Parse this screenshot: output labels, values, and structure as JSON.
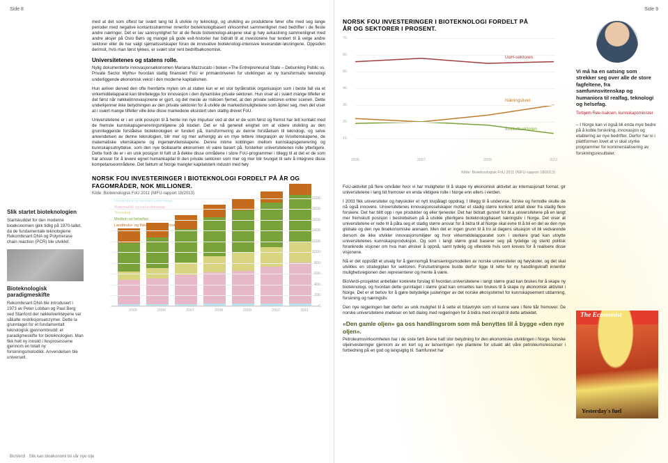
{
  "page_left_num": "Side 8",
  "page_right_num": "Side 9",
  "footer": "BioVerdi · Slik kan bioøkonomi bli vår nye olje",
  "sidebar": {
    "h1_title": "Slik startet bioteknologien",
    "h1_body": "Startskuddet for den moderne bioøkonomien gikk tidlig på 1970-tallet, da de fundamentale teknologiene Rekombinant DNA og Polymerase chain reaction (PCR) ble utviklet.",
    "h2_title": "Bioteknologisk paradigmeskifte",
    "h2_body": "Rekombinant DNA ble introdusert i 1973 av Peter Lobban og Paul Berg ved Stanford der nøkkelverktøyene var såkalte restriksjonsenzymer. Dette la grunnlaget for et fundamentalt teknologisk gjennombrudd: et paradigmeskifte for bioteknologien. Man fikk helt ny innsikt i livsprosessene gjennom en totalt ny forskningsmetodikk. Anvendelsen ble universell."
  },
  "main": {
    "p1": "med at det som oftest tar svært lang tid å utvikle ny teknologi, og utvikling av produktene fører ofte med seg lange perioder med negative kontantsstrømmer innenfor bioteknologibasert virksomhet sammenlignet med bedrifter i de fleste andre næringer. Det er lav sannsynlighet for at de fleste bioteknologi-aksjene skal gi høy avkastning sammenlignet med andre aksjer på Oslo Børs og mangel på gode exit-historier har bidratt til at investorene har tendert til å velge andre sektorer eller de har valgt sjømatsselskaper foran de innovative bioteknologi-intensive leverandør-løsningene. Oppsiden derimot, hvis man først lykkes, er svært stor rent bedriftsøkonomisk.",
    "h_univ": "Universitetenes og statens rolle.",
    "p2": "Nylig dokumenterte innovasjonsøkonomen Mariana Mazzucato i boken «The Entrepreneurial State – Debunking Public vs. Private Sector Myths» hvordan statlig finansiert FoU er primærdriveren for utviklingen av ny transformativ teknologi underliggende økonomisk vekst i den moderne kapitalismen.",
    "p3": "Hun avliver derved den ofte fremførte myten om at staten kun er en stor byråkratisk organisasjon som i beste fall via et virkemiddelapparat kan tilrettelegge for innovasjon i den dynamiske private sektoren. Hun viser at i svært mange tilfeller er det først når nøkkelinnovasjonene er gjort, og det meste av risikoen fjernet, at den private sektoren entrer scenen. Dette underkjenner ikke betydningen av den private sektoren for å utvikle de markedsmulighetene som åpner seg, men det viser at i svært mange tilfeller ville ikke disse markedene eksistert uten statlig drevet FoU.",
    "p4": "Universitetene er i en unik posisjon til å hente inn nye impulser ved at det er de som først og fremst har tett kontakt med de fremste kunnskapsgenereringsmiljøene på kloden. Det er nå generell enighet om at videre utvikling av den grunnleggende forståelse bioteknologien er fundert på, transformering av denne forståelsen til teknologi, og selve anvendelsen av denne teknologien, blir mer og mer avhengig av en mye tettere integrasjon av livsvitenskapene, de matematiske vitenskapene og ingeniørvitenskapene. Denne intime koblingen mellom kunnskapsgenerering og kunnskapsutnyttelse, som den nye biobaserte økonomien vil være basert på, forsterker universitetenes rolle ytterligere. Dette fordi de er i en unik posisjon til fullt ut å dekke disse områdene i store FoU-programmer i tillegg til at det er de som har ansvar for å levere egnet humankapital til den private sektoren som mer og mer blir tvunget til selv å integrere disse kompetanseområdene. Det faktum at Norge mangler kapitalsterk industri med høy"
  },
  "barchart": {
    "title": "NORSK FOU INVESTERINGER I BIOTEKNOLOGI FORDELT PÅ ÅR OG FAGOMRÅDER, NOK MILLIONER.",
    "source": "Kilde: Bioteknologisk FoU 2011 (NIFU-rapport 18/2013)",
    "legend": [
      {
        "label": "Humaniora og samfunnsvitenskap",
        "color": "#b9e3ef"
      },
      {
        "label": "Matematikk og naturvitenskap",
        "color": "#e7b8c8"
      },
      {
        "label": "Teknologi",
        "color": "#d9d480"
      },
      {
        "label": "Medisin og helsefag",
        "color": "#7aa23a"
      },
      {
        "label": "Landbruks- og fiskerifag og veterinærmedisin",
        "color": "#c46b1e"
      }
    ],
    "ylim": [
      0,
      2000
    ],
    "ytick_step": 200,
    "years": [
      "2005",
      "2006",
      "2007",
      "2008",
      "2009",
      "2010",
      "2011"
    ],
    "series_stack": [
      [
        25,
        28,
        30,
        32,
        34,
        34,
        35
      ],
      [
        450,
        470,
        530,
        580,
        610,
        690,
        760
      ],
      [
        160,
        200,
        240,
        300,
        340,
        360,
        380
      ],
      [
        520,
        560,
        620,
        720,
        780,
        820,
        880
      ],
      [
        270,
        270,
        260,
        240,
        220,
        210,
        200
      ]
    ],
    "background_color": "#ffffff",
    "grid_color": "#eeeeee",
    "label_fontsize": 5.5
  },
  "linechart": {
    "title": "NORSK FOU INVESTERINGER I BIOTEKNOLOGI FORDELT PÅ ÅR OG SEKTORER I PROSENT.",
    "source": "Kilde: Bioteknologisk FoU 2011 (NIFU-rapport 18/2013)",
    "ylim": [
      0,
      70
    ],
    "ytick_step": 10,
    "years": [
      "2005",
      "2007",
      "2009",
      "2011"
    ],
    "series": [
      {
        "label": "UoH-sektoren",
        "color": "#9f3c3c",
        "values": [
          56,
          58,
          55,
          56
        ],
        "label_y": 56
      },
      {
        "label": "Næringslivet",
        "color": "#c07a2a",
        "values": [
          22,
          20,
          24,
          30
        ],
        "label_y": 30
      },
      {
        "label": "Instituttsektoren",
        "color": "#7aa23a",
        "values": [
          19,
          20,
          18,
          13
        ],
        "label_y": 13
      }
    ],
    "background_color": "#ffffff",
    "grid_color": "#f2f2f2",
    "line_width": 1.5,
    "label_fontsize": 5.5
  },
  "right": {
    "p1": "FoU-aktivitet på flere områder hvor vi har muligheter til å skape ny økonomisk aktivitet av internasjonalt format, gir universitetene i lang tid fremover en enda viktigere rolle i Norge enn ellers i verden.",
    "p2": "I 2003 fikk universiteter og høyskoler et nytt lovpålagt oppdrag. I tillegg til å undervise, forske og formidle skulle de nå også innovere. Universitetenes innovasjonsselskaper mottar et stadig større konkret antall ideer fra stadig flere forskere. Det har blitt opp i nye produkter og eller tjenester. Det har bidratt gunnet for bl.a universitetene på en langt mer fremskutt posisjon i bestrebelsen på å utvikle ytterligere bioteknologibasert næringsliv i Norge. Det viser at universitetene er rede til å påta seg et stadig større ansvar for å bidra til at Norge skal evne til å bli en del av den nye globale og den nye bioøkonomiske arenaen. Men det er ingen grunn til å tro at dagens situasjon vil bli vedvarende dersom de ikke utvikler innovasjonsmiljøer og hvor virkemiddelapparatet som i sterkere grad kan utnytte universitetenes kunnskapsproduksjon. Og som i langt større grad baserer seg på tydelige og sterkt politisk forankrede visjoner om hva man ønsker å oppnå, samt tydelig og villestete hvis som kreves for å realisere disse visjonene.",
    "p3": "Nå er det oppstått et utvalg for å gjennomgå finansieringsmodellen av norske universiteter og høyskoler, og det skal utvikles en strategiplan for sektoren. Forutsetningene burde derfor ligge til rette for ny handlingskraft innenfor mulighetsregionen den representerer og mente å være.",
    "p4": "BioVerdi-prosjektet anbefaler konkrete forslag til hvordan universitetene i langt større grad kan brukes for å skape ny bioteknologi, og hvordan dette gunnlaget i større grad kan omsettes kan brukes til å skape ny økonomisk aktivitet i Norge. Det er et behov for å gjøre betydelige justeringer av det norske økosystemet for kunnskapsement utdanning, forskning og næringsliv.",
    "p5": "Den nye regjeringen bør derfor av unik mulighet til å sette et fotavtrykk som vil kunne vare i flere tiår fremover. De norske universitetene imøteser en tett dialog med regjeringen for å bidra med innspill til dette arbeidet.",
    "h_quote": "«Den gamle oljen» ga oss handlingsrom som må benyttes til å bygge «den nye oljen».",
    "p6": "Petroleumsvirksomheten har i de siste førti årene hatt stor betydning for den økonomiske utviklingen i Norge. Norske oljeinvesteringer gjennom av en kort og av lanseringen nye plantene for utsakt akt våre petroleumsressurser i forbedning på en god og langsigtig til. Samfunnet har"
  },
  "quote": {
    "q1": "Vi må ha en satsing som strekker seg over alle de store fagfeltene, fra samfunnsvitenskap og humaniora til realfag, teknologi og helsefag.",
    "attrib": "Torbjørn Røe-Isaksen, kunnskapsminister",
    "q2": "– I Norge kan vi også bli enda mye bedre på å koble forskning, innovasjon og etablering av nye bedrifter. Derfor har vi i plattformen lovet at vi skal styrke programmer for kommersialisering av forskningsresultater."
  },
  "economist": {
    "masthead": "The Economist",
    "headline": "Yesterday's fuel"
  }
}
